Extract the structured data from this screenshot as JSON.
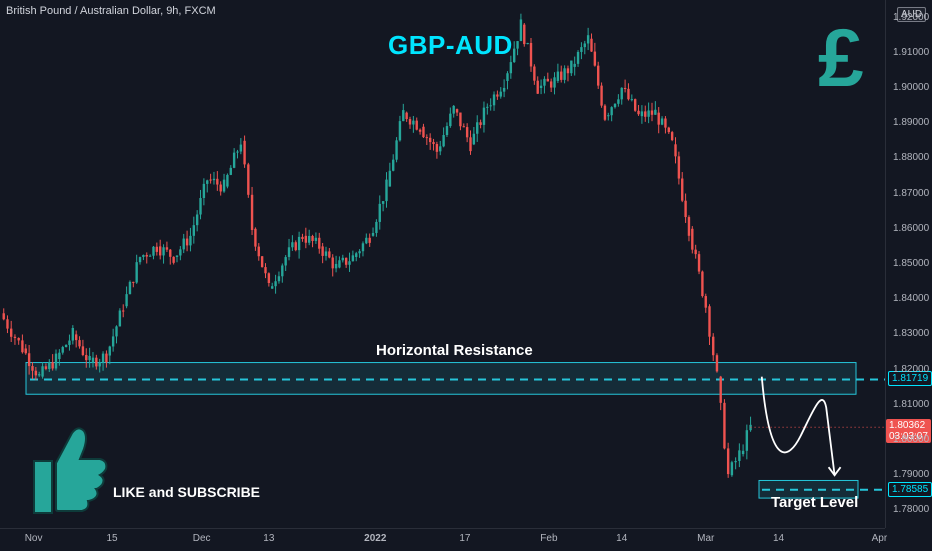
{
  "header": {
    "symbol_line": "British Pound / Australian Dollar, 9h, FXCM"
  },
  "currency_badge": "AUD",
  "colors": {
    "bg": "#131722",
    "up": "#26a69a",
    "down": "#ef5350",
    "accent": "#00e5ff",
    "zone": "#26c6da"
  },
  "chart_data": {
    "type": "candlestick",
    "title": "GBP-AUD",
    "ylim": [
      1.775,
      1.925
    ],
    "y_ticks": [
      "1.92000",
      "1.91000",
      "1.90000",
      "1.89000",
      "1.88000",
      "1.87000",
      "1.86000",
      "1.85000",
      "1.84000",
      "1.83000",
      "1.82000",
      "1.81000",
      "1.80000",
      "1.79000",
      "1.78000"
    ],
    "x_ticks": [
      "Nov",
      "15",
      "Dec",
      "13",
      "2022",
      "17",
      "Feb",
      "14",
      "Mar",
      "14",
      "Apr"
    ],
    "x_tick_dates": [
      "2021-11-01",
      "2021-11-15",
      "2021-12-01",
      "2021-12-13",
      "2022-01-01",
      "2022-01-17",
      "2022-02-01",
      "2022-02-14",
      "2022-03-01",
      "2022-03-14",
      "2022-04-01"
    ],
    "xlim": [
      "2021-10-26",
      "2022-04-02"
    ],
    "series_close": [
      [
        "2021-10-26",
        1.836
      ],
      [
        "2021-10-30",
        1.826
      ],
      [
        "2021-11-02",
        1.818
      ],
      [
        "2021-11-05",
        1.823
      ],
      [
        "2021-11-08",
        1.83
      ],
      [
        "2021-11-11",
        1.822
      ],
      [
        "2021-11-14",
        1.824
      ],
      [
        "2021-11-17",
        1.838
      ],
      [
        "2021-11-20",
        1.852
      ],
      [
        "2021-11-23",
        1.855
      ],
      [
        "2021-11-26",
        1.852
      ],
      [
        "2021-11-29",
        1.858
      ],
      [
        "2021-12-02",
        1.874
      ],
      [
        "2021-12-05",
        1.872
      ],
      [
        "2021-12-08",
        1.885
      ],
      [
        "2021-12-10",
        1.86
      ],
      [
        "2021-12-13",
        1.843
      ],
      [
        "2021-12-16",
        1.852
      ],
      [
        "2021-12-19",
        1.858
      ],
      [
        "2021-12-22",
        1.855
      ],
      [
        "2021-12-25",
        1.849
      ],
      [
        "2021-12-28",
        1.852
      ],
      [
        "2021-12-31",
        1.858
      ],
      [
        "2022-01-03",
        1.872
      ],
      [
        "2022-01-06",
        1.893
      ],
      [
        "2022-01-09",
        1.889
      ],
      [
        "2022-01-12",
        1.882
      ],
      [
        "2022-01-15",
        1.894
      ],
      [
        "2022-01-18",
        1.884
      ],
      [
        "2022-01-21",
        1.895
      ],
      [
        "2022-01-24",
        1.902
      ],
      [
        "2022-01-27",
        1.918
      ],
      [
        "2022-01-30",
        1.9
      ],
      [
        "2022-02-02",
        1.902
      ],
      [
        "2022-02-05",
        1.906
      ],
      [
        "2022-02-08",
        1.914
      ],
      [
        "2022-02-11",
        1.892
      ],
      [
        "2022-02-14",
        1.9
      ],
      [
        "2022-02-17",
        1.892
      ],
      [
        "2022-02-20",
        1.893
      ],
      [
        "2022-02-23",
        1.884
      ],
      [
        "2022-02-26",
        1.86
      ],
      [
        "2022-03-01",
        1.838
      ],
      [
        "2022-03-03",
        1.818
      ],
      [
        "2022-03-05",
        1.79
      ],
      [
        "2022-03-07",
        1.796
      ],
      [
        "2022-03-09",
        1.8036
      ]
    ],
    "last_price": "1.80362",
    "countdown": "03:03:07",
    "resistance_price": "1.81719",
    "resistance_zone": [
      1.813,
      1.822
    ],
    "target_price": "1.78585",
    "target_zone": [
      1.7835,
      1.7885
    ],
    "projection": [
      [
        "2022-03-11",
        1.818
      ],
      [
        "2022-03-14",
        1.8
      ],
      [
        "2022-03-20",
        1.811
      ],
      [
        "2022-03-24",
        1.79
      ]
    ],
    "annotations": {
      "resistance_label": "Horizontal Resistance",
      "target_label": "Target Level",
      "cta": "LIKE and SUBSCRIBE",
      "currency_symbol": "£"
    }
  }
}
